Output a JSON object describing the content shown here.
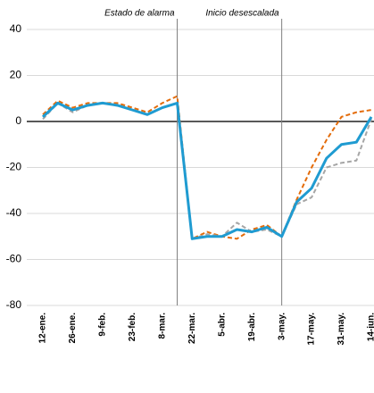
{
  "chart_data": {
    "type": "line",
    "categories": [
      "12-ene.",
      null,
      "26-ene.",
      null,
      "9-feb.",
      null,
      "23-feb.",
      null,
      "8-mar.",
      null,
      "22-mar.",
      null,
      "5-abr.",
      null,
      "19-abr.",
      null,
      "3-may.",
      null,
      "17-may.",
      null,
      "31-may.",
      null,
      "14-jun."
    ],
    "series": [
      {
        "name": "orange",
        "color": "#e46c0a",
        "dash": true,
        "values": [
          3,
          9,
          6,
          8,
          8,
          8,
          6,
          4,
          8,
          11,
          -51,
          -48,
          -50,
          -51,
          -47,
          -45,
          -50,
          -34,
          -20,
          -8,
          2,
          4,
          5
        ]
      },
      {
        "name": "gray",
        "color": "#a6a6a6",
        "dash": true,
        "values": [
          1,
          8,
          4,
          7,
          8,
          7,
          5,
          3,
          6,
          8,
          -51,
          -49,
          -50,
          -44,
          -48,
          -47,
          -50,
          -36,
          -33,
          -20,
          -18,
          -17,
          1
        ]
      },
      {
        "name": "blue",
        "color": "#1f9bd1",
        "dash": false,
        "values": [
          2,
          8,
          5,
          7,
          8,
          7,
          5,
          3,
          6,
          8,
          -51,
          -50,
          -50,
          -47,
          -48,
          -46,
          -50,
          -35,
          -29,
          -16,
          -10,
          -9,
          2
        ]
      }
    ],
    "annotations": [
      {
        "text": "Estado de alarma",
        "at": 9
      },
      {
        "text": "Inicio desescalada",
        "at": 16
      }
    ],
    "ylim": [
      -80,
      40
    ],
    "yticks": [
      -80,
      -60,
      -40,
      -20,
      0,
      20,
      40
    ],
    "grid": true
  }
}
